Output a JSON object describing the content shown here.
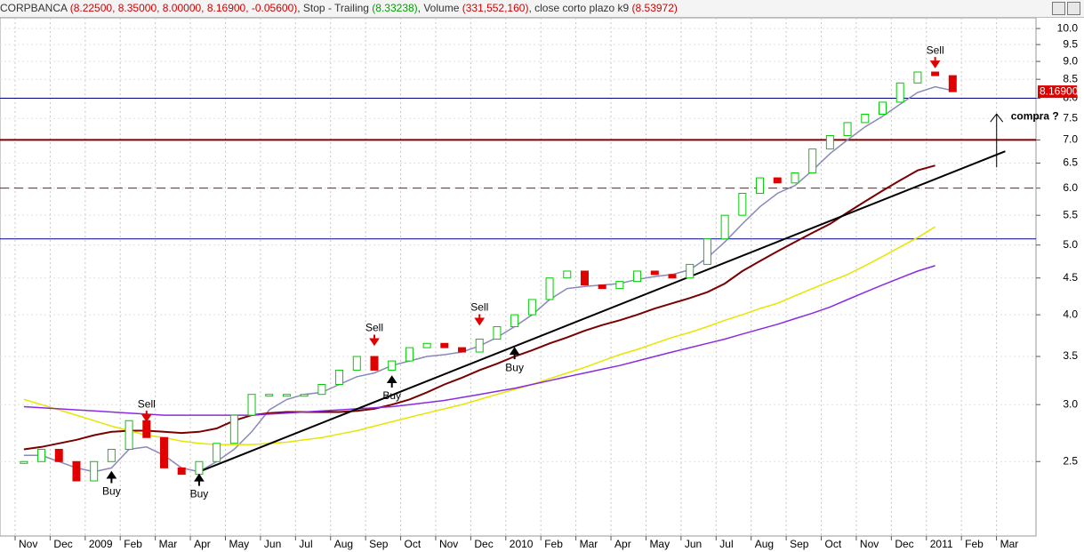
{
  "header": {
    "symbol": "CORPBANCA",
    "ohlc": "(8.22500, 8.35000, 8.00000, 8.16900, -0.05600)",
    "stop_label": ", Stop - Trailing",
    "stop_value": "(8.33238)",
    "volume_label": ", Volume",
    "volume_value": "(331,552,160)",
    "k9_label": ", close corto plazo k9",
    "k9_value": "(8.53972)"
  },
  "chart_data": {
    "type": "candlestick",
    "log_scale": true,
    "grid": true,
    "last_label": "8.16900",
    "categories": [
      "Nov",
      null,
      "Dec",
      null,
      "2009",
      null,
      "Feb",
      null,
      "Mar",
      null,
      "Apr",
      null,
      "May",
      null,
      "Jun",
      null,
      "Jul",
      null,
      "Aug",
      null,
      "Sep",
      null,
      "Oct",
      null,
      "Nov",
      null,
      "Dec",
      null,
      "2010",
      null,
      "Feb",
      null,
      "Mar",
      null,
      "Apr",
      null,
      "May",
      null,
      "Jun",
      null,
      "Jul",
      null,
      "Aug",
      null,
      "Sep",
      null,
      "Oct",
      null,
      "Nov",
      null,
      "Dec",
      null,
      "2011",
      null,
      "Feb",
      null,
      "Mar",
      null
    ],
    "series": [
      {
        "color": "#00cc00",
        "down_color": "#e00000",
        "values": [
          2.5,
          2.6,
          2.5,
          2.35,
          2.5,
          2.6,
          2.85,
          2.7,
          2.45,
          2.4,
          2.5,
          2.65,
          2.9,
          3.1,
          3.1,
          3.1,
          3.1,
          3.2,
          3.35,
          3.5,
          3.35,
          3.45,
          3.6,
          3.65,
          3.6,
          3.55,
          3.7,
          3.85,
          4.0,
          4.2,
          4.5,
          4.6,
          4.4,
          4.35,
          4.45,
          4.6,
          4.55,
          4.5,
          4.7,
          5.1,
          5.5,
          5.9,
          6.2,
          6.1,
          6.3,
          6.8,
          7.1,
          7.4,
          7.6,
          7.9,
          8.4,
          8.7,
          8.6,
          8.17,
          null,
          null,
          null,
          null
        ]
      },
      {
        "color": "#8888bb",
        "values": [
          2.55,
          2.55,
          2.5,
          2.45,
          2.42,
          2.45,
          2.6,
          2.62,
          2.55,
          2.45,
          2.42,
          2.5,
          2.6,
          2.75,
          2.95,
          3.05,
          3.1,
          3.12,
          3.2,
          3.28,
          3.32,
          3.4,
          3.45,
          3.5,
          3.52,
          3.55,
          3.62,
          3.72,
          3.85,
          4.0,
          4.2,
          4.35,
          4.38,
          4.4,
          4.42,
          4.48,
          4.52,
          4.55,
          4.62,
          4.8,
          5.05,
          5.35,
          5.65,
          5.9,
          6.05,
          6.35,
          6.7,
          7.0,
          7.3,
          7.55,
          7.85,
          8.15,
          8.3,
          8.2,
          null,
          null,
          null,
          null
        ]
      },
      {
        "color": "#7a0000",
        "values": [
          2.6,
          2.62,
          2.65,
          2.68,
          2.72,
          2.75,
          2.76,
          2.76,
          2.75,
          2.74,
          2.75,
          2.78,
          2.85,
          2.9,
          2.92,
          2.93,
          2.93,
          2.93,
          2.93,
          2.94,
          2.96,
          3.0,
          3.05,
          3.12,
          3.2,
          3.27,
          3.35,
          3.42,
          3.5,
          3.57,
          3.65,
          3.72,
          3.8,
          3.87,
          3.93,
          4.0,
          4.08,
          4.15,
          4.22,
          4.3,
          4.42,
          4.6,
          4.75,
          4.9,
          5.05,
          5.2,
          5.35,
          5.55,
          5.75,
          5.95,
          6.15,
          6.35,
          6.45,
          null,
          null,
          null,
          null,
          null
        ]
      },
      {
        "color": "#e6e600",
        "values": [
          3.05,
          3.0,
          2.95,
          2.9,
          2.85,
          2.8,
          2.76,
          2.72,
          2.7,
          2.67,
          2.65,
          2.64,
          2.64,
          2.64,
          2.65,
          2.66,
          2.68,
          2.7,
          2.73,
          2.76,
          2.8,
          2.84,
          2.88,
          2.92,
          2.96,
          3.0,
          3.05,
          3.1,
          3.15,
          3.2,
          3.26,
          3.32,
          3.38,
          3.45,
          3.52,
          3.58,
          3.65,
          3.72,
          3.78,
          3.85,
          3.93,
          4.0,
          4.08,
          4.15,
          4.25,
          4.35,
          4.45,
          4.55,
          4.68,
          4.82,
          4.97,
          5.12,
          5.3,
          null,
          null,
          null,
          null,
          null
        ]
      },
      {
        "color": "#8a2be2",
        "values": [
          2.98,
          2.97,
          2.96,
          2.95,
          2.94,
          2.93,
          2.92,
          2.91,
          2.9,
          2.9,
          2.9,
          2.9,
          2.9,
          2.9,
          2.91,
          2.92,
          2.93,
          2.94,
          2.95,
          2.96,
          2.97,
          2.98,
          3.0,
          3.02,
          3.04,
          3.07,
          3.1,
          3.13,
          3.16,
          3.2,
          3.24,
          3.28,
          3.32,
          3.36,
          3.4,
          3.45,
          3.5,
          3.55,
          3.6,
          3.65,
          3.7,
          3.76,
          3.82,
          3.88,
          3.95,
          4.02,
          4.1,
          4.2,
          4.3,
          4.4,
          4.5,
          4.6,
          4.68,
          null,
          null,
          null,
          null,
          null
        ]
      }
    ],
    "hlines": [
      {
        "value": 8.0,
        "color": "#000080"
      },
      {
        "value": 7.0,
        "color": "#800000",
        "width": 2
      },
      {
        "value": 6.0,
        "color": "#c00000",
        "dashed": true
      },
      {
        "value": 5.1,
        "color": "#000080"
      }
    ],
    "trendline": {
      "start": 2.42,
      "end": 6.75
    },
    "annotations": [
      "Buy",
      "Buy",
      "Buy",
      "Buy",
      "Sell",
      "Sell",
      "Sell",
      "Sell",
      "compra ?"
    ],
    "ylim": [
      1.97,
      10.35
    ],
    "yticks": [
      2.5,
      {
        "value": 3,
        "label": "3.0"
      },
      3.5,
      {
        "value": 4,
        "label": "4.0"
      },
      4.5,
      {
        "value": 5,
        "label": "5.0"
      },
      5.5,
      {
        "value": 6,
        "label": "6.0"
      },
      6.5,
      {
        "value": 7,
        "label": "7.0"
      },
      7.5,
      {
        "value": 8,
        "label": "8.0"
      },
      8.5,
      {
        "value": 9,
        "label": "9.0"
      },
      9.5,
      {
        "value": 10,
        "label": "10.0"
      }
    ]
  }
}
